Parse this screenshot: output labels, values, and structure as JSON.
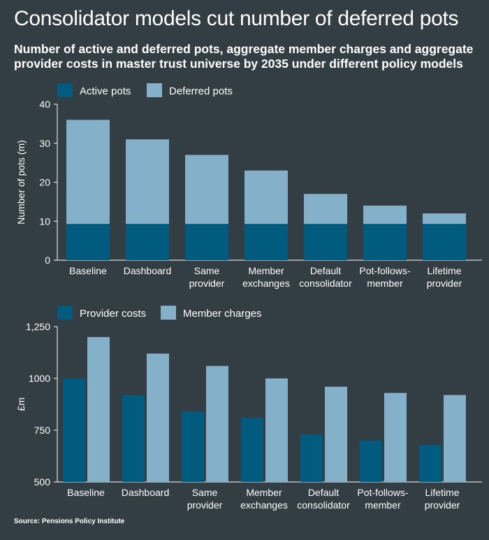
{
  "header": {
    "title": "Consolidator models cut number of deferred pots",
    "subtitle": "Number of active and deferred pots, aggregate member charges and aggregate provider costs in master trust universe by 2035 under different policy models"
  },
  "footer": {
    "source": "Source: Pensions Policy Institute"
  },
  "colors": {
    "dark": "#005b7f",
    "light": "#85b0c9",
    "background": "#333d44",
    "text": "#ffffff"
  },
  "chart_data": [
    {
      "type": "bar",
      "stacked": true,
      "categories": [
        [
          "Baseline"
        ],
        [
          "Dashboard"
        ],
        [
          "Same",
          "provider"
        ],
        [
          "Member",
          "exchanges"
        ],
        [
          "Default",
          "consolidator"
        ],
        [
          "Pot-follows-",
          "member"
        ],
        [
          "Lifetime",
          "provider"
        ]
      ],
      "series": [
        {
          "name": "Active pots",
          "values": [
            9.3,
            9.3,
            9.3,
            9.3,
            9.3,
            9.3,
            9.3
          ]
        },
        {
          "name": "Deferred pots",
          "values": [
            26.7,
            21.7,
            17.7,
            13.7,
            7.7,
            4.7,
            2.7
          ]
        }
      ],
      "ylabel": "Number of pots (m)",
      "ylim": [
        0,
        40
      ],
      "yticks": [
        "0",
        "10",
        "20",
        "30",
        "40"
      ],
      "ytick_values": [
        0,
        10,
        20,
        30,
        40
      ],
      "legend_position": "top-left",
      "grid": false
    },
    {
      "type": "bar",
      "stacked": false,
      "categories": [
        [
          "Baseline"
        ],
        [
          "Dashboard"
        ],
        [
          "Same",
          "provider"
        ],
        [
          "Member",
          "exchanges"
        ],
        [
          "Default",
          "consolidator"
        ],
        [
          "Pot-follows-",
          "member"
        ],
        [
          "Lifetime",
          "provider"
        ]
      ],
      "series": [
        {
          "name": "Provider costs",
          "values": [
            1000,
            920,
            840,
            810,
            730,
            700,
            680
          ]
        },
        {
          "name": "Member charges",
          "values": [
            1200,
            1120,
            1060,
            1000,
            960,
            930,
            920
          ]
        }
      ],
      "ylabel": "£m",
      "ylim": [
        500,
        1250
      ],
      "yticks": [
        "500",
        "750",
        "1000",
        "1,250"
      ],
      "ytick_values": [
        500,
        750,
        1000,
        1250
      ],
      "legend_position": "top-left",
      "grid": false
    }
  ]
}
